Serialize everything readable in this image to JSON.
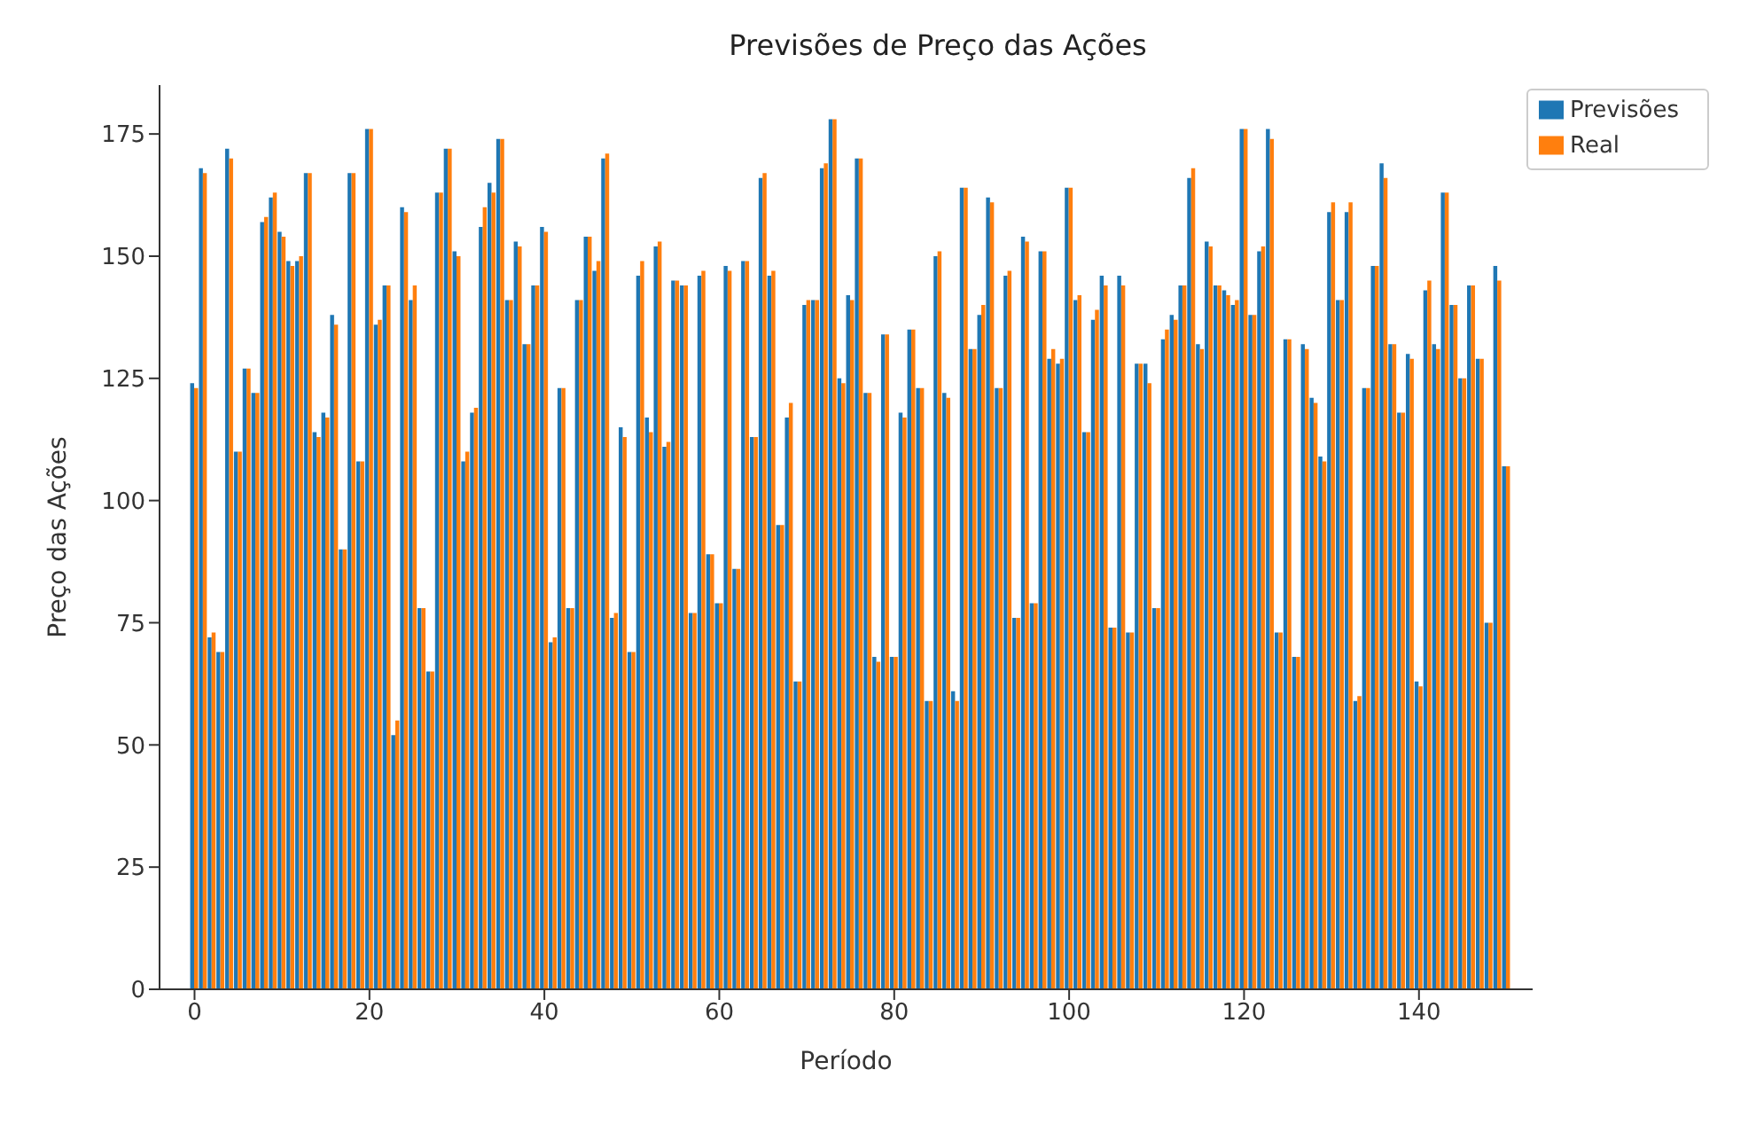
{
  "chart_data": {
    "type": "bar",
    "title": "Previsões de Preço das Ações",
    "xlabel": "Período",
    "ylabel": "Preço das Ações",
    "x": [
      0,
      1,
      2,
      3,
      4,
      5,
      6,
      7,
      8,
      9,
      10,
      11,
      12,
      13,
      14,
      15,
      16,
      17,
      18,
      19,
      20,
      21,
      22,
      23,
      24,
      25,
      26,
      27,
      28,
      29,
      30,
      31,
      32,
      33,
      34,
      35,
      36,
      37,
      38,
      39,
      40,
      41,
      42,
      43,
      44,
      45,
      46,
      47,
      48,
      49,
      50,
      51,
      52,
      53,
      54,
      55,
      56,
      57,
      58,
      59,
      60,
      61,
      62,
      63,
      64,
      65,
      66,
      67,
      68,
      69,
      70,
      71,
      72,
      73,
      74,
      75,
      76,
      77,
      78,
      79,
      80,
      81,
      82,
      83,
      84,
      85,
      86,
      87,
      88,
      89,
      90,
      91,
      92,
      93,
      94,
      95,
      96,
      97,
      98,
      99,
      100,
      101,
      102,
      103,
      104,
      105,
      106,
      107,
      108,
      109,
      110,
      111,
      112,
      113,
      114,
      115,
      116,
      117,
      118,
      119,
      120,
      121,
      122,
      123,
      124,
      125,
      126,
      127,
      128,
      129,
      130,
      131,
      132,
      133,
      134,
      135,
      136,
      137,
      138,
      139,
      140,
      141,
      142,
      143,
      144,
      145,
      146,
      147,
      148,
      149,
      150
    ],
    "series": [
      {
        "name": "Previsões",
        "color": "#1f77b4",
        "values": [
          124,
          168,
          72,
          69,
          172,
          110,
          127,
          122,
          157,
          162,
          155,
          149,
          149,
          167,
          114,
          118,
          138,
          90,
          167,
          108,
          176,
          136,
          144,
          52,
          160,
          141,
          78,
          65,
          163,
          172,
          151,
          108,
          118,
          156,
          165,
          174,
          141,
          153,
          132,
          144,
          156,
          71,
          123,
          78,
          141,
          154,
          147,
          170,
          76,
          115,
          69,
          146,
          117,
          152,
          111,
          145,
          144,
          77,
          146,
          89,
          79,
          148,
          86,
          149,
          113,
          166,
          146,
          95,
          117,
          63,
          140,
          141,
          168,
          178,
          125,
          142,
          170,
          122,
          68,
          134,
          68,
          118,
          135,
          123,
          59,
          150,
          122,
          61,
          164,
          131,
          138,
          162,
          123,
          146,
          76,
          154,
          79,
          151,
          129,
          128,
          164,
          141,
          114,
          137,
          146,
          74,
          146,
          73,
          128,
          128,
          78,
          133,
          138,
          144,
          166,
          132,
          153,
          144,
          143,
          140,
          176,
          138,
          151,
          176,
          73,
          133,
          68,
          132,
          121,
          109,
          159,
          141,
          159,
          59,
          123,
          148,
          169,
          132,
          118,
          130,
          63,
          143,
          132,
          163,
          140,
          125,
          144,
          129,
          75,
          148,
          107
        ]
      },
      {
        "name": "Real",
        "color": "#ff7f0e",
        "values": [
          123,
          167,
          73,
          69,
          170,
          110,
          127,
          122,
          158,
          163,
          154,
          148,
          150,
          167,
          113,
          117,
          136,
          90,
          167,
          108,
          176,
          137,
          144,
          55,
          159,
          144,
          78,
          65,
          163,
          172,
          150,
          110,
          119,
          160,
          163,
          174,
          141,
          152,
          132,
          144,
          155,
          72,
          123,
          78,
          141,
          154,
          149,
          171,
          77,
          113,
          69,
          149,
          114,
          153,
          112,
          145,
          144,
          77,
          147,
          89,
          79,
          147,
          86,
          149,
          113,
          167,
          147,
          95,
          120,
          63,
          141,
          141,
          169,
          178,
          124,
          141,
          170,
          122,
          67,
          134,
          68,
          117,
          135,
          123,
          59,
          151,
          121,
          59,
          164,
          131,
          140,
          161,
          123,
          147,
          76,
          153,
          79,
          151,
          131,
          129,
          164,
          142,
          114,
          139,
          144,
          74,
          144,
          73,
          128,
          124,
          78,
          135,
          137,
          144,
          168,
          131,
          152,
          144,
          142,
          141,
          176,
          138,
          152,
          174,
          73,
          133,
          68,
          131,
          120,
          108,
          161,
          141,
          161,
          60,
          123,
          148,
          166,
          132,
          118,
          129,
          62,
          145,
          131,
          163,
          140,
          125,
          144,
          129,
          75,
          145,
          107
        ]
      }
    ],
    "xlim": [
      -4,
      153
    ],
    "xticks": [
      0,
      20,
      40,
      60,
      80,
      100,
      120,
      140
    ],
    "ylim": [
      0,
      185
    ],
    "yticks": [
      0,
      25,
      50,
      75,
      100,
      125,
      150,
      175
    ],
    "legend": "top right",
    "grid": false
  }
}
